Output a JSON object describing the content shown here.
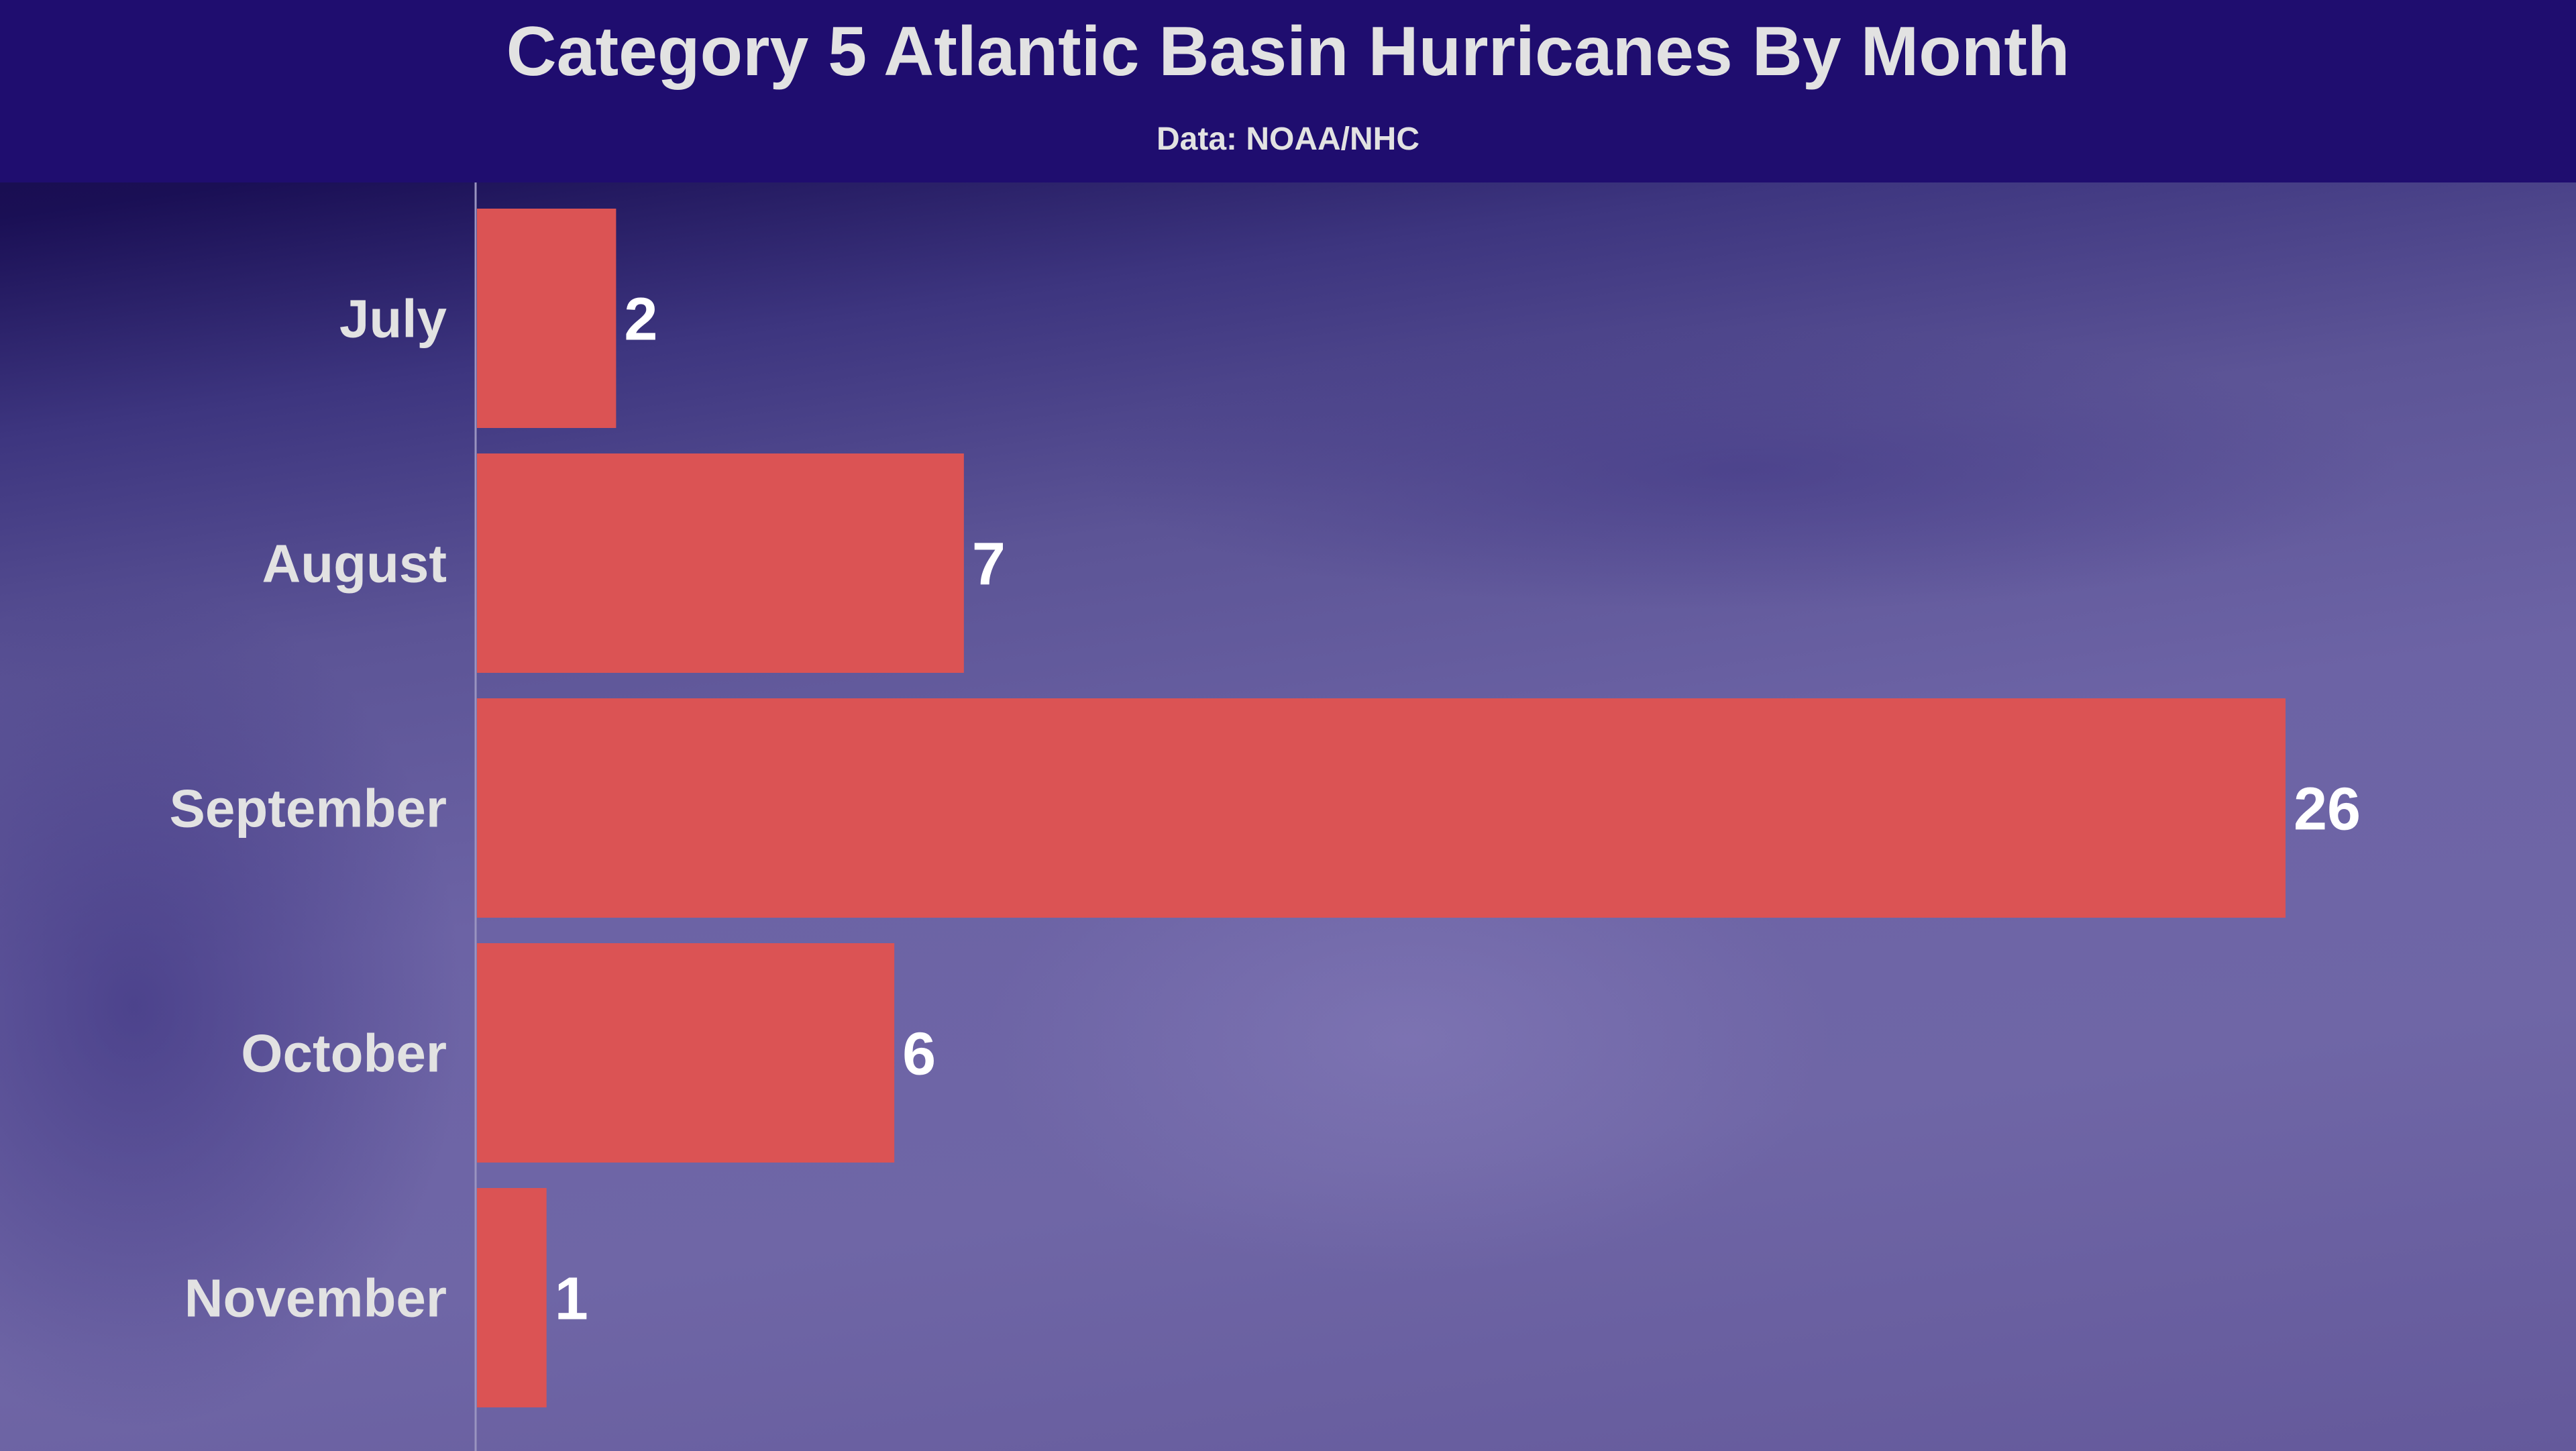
{
  "chart_data": {
    "type": "bar",
    "orientation": "horizontal",
    "title": "Category 5 Atlantic Basin Hurricanes By Month",
    "subtitle": "Data: NOAA/NHC",
    "categories": [
      "July",
      "August",
      "September",
      "October",
      "November"
    ],
    "values": [
      2,
      7,
      26,
      6,
      1
    ],
    "xlim": [
      0,
      26
    ],
    "grid": false,
    "data_labels": true,
    "colors": {
      "bar": "#db5354",
      "header": "#1f0d6f",
      "label": "#e2e2e2",
      "value_label": "#ffffff"
    }
  }
}
